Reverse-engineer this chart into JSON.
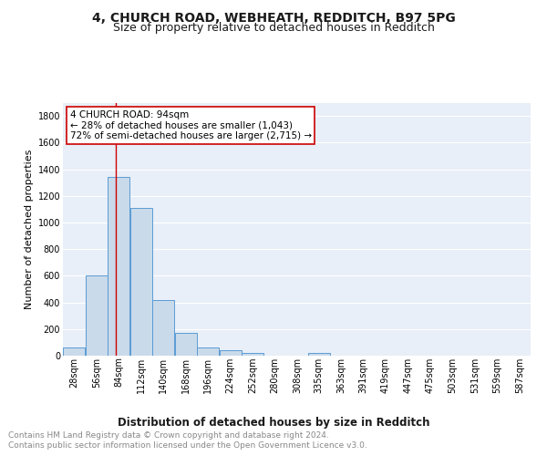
{
  "title1": "4, CHURCH ROAD, WEBHEATH, REDDITCH, B97 5PG",
  "title2": "Size of property relative to detached houses in Redditch",
  "xlabel": "Distribution of detached houses by size in Redditch",
  "ylabel": "Number of detached properties",
  "bar_edges": [
    28,
    56,
    84,
    112,
    140,
    168,
    196,
    224,
    252,
    280,
    308,
    335,
    363,
    391,
    419,
    447,
    475,
    503,
    531,
    559,
    587
  ],
  "bar_heights": [
    60,
    600,
    1340,
    1110,
    420,
    170,
    65,
    38,
    18,
    0,
    0,
    18,
    0,
    0,
    0,
    0,
    0,
    0,
    0,
    0
  ],
  "bar_color": "#c9daea",
  "bar_edge_color": "#5b9bd5",
  "vline_x": 94,
  "vline_color": "#cc0000",
  "annotation_text": "4 CHURCH ROAD: 94sqm\n← 28% of detached houses are smaller (1,043)\n72% of semi-detached houses are larger (2,715) →",
  "annotation_box_color": "#ffffff",
  "annotation_box_edgecolor": "#cc0000",
  "ylim": [
    0,
    1900
  ],
  "yticks": [
    0,
    200,
    400,
    600,
    800,
    1000,
    1200,
    1400,
    1600,
    1800
  ],
  "xtick_labels": [
    "28sqm",
    "56sqm",
    "84sqm",
    "112sqm",
    "140sqm",
    "168sqm",
    "196sqm",
    "224sqm",
    "252sqm",
    "280sqm",
    "308sqm",
    "335sqm",
    "363sqm",
    "391sqm",
    "419sqm",
    "447sqm",
    "475sqm",
    "503sqm",
    "531sqm",
    "559sqm",
    "587sqm"
  ],
  "background_color": "#e8eff8",
  "grid_color": "#ffffff",
  "footnote": "Contains HM Land Registry data © Crown copyright and database right 2024.\nContains public sector information licensed under the Open Government Licence v3.0.",
  "title1_fontsize": 10,
  "title2_fontsize": 9,
  "xlabel_fontsize": 8.5,
  "ylabel_fontsize": 8,
  "tick_fontsize": 7,
  "annotation_fontsize": 7.5,
  "footnote_fontsize": 6.5
}
